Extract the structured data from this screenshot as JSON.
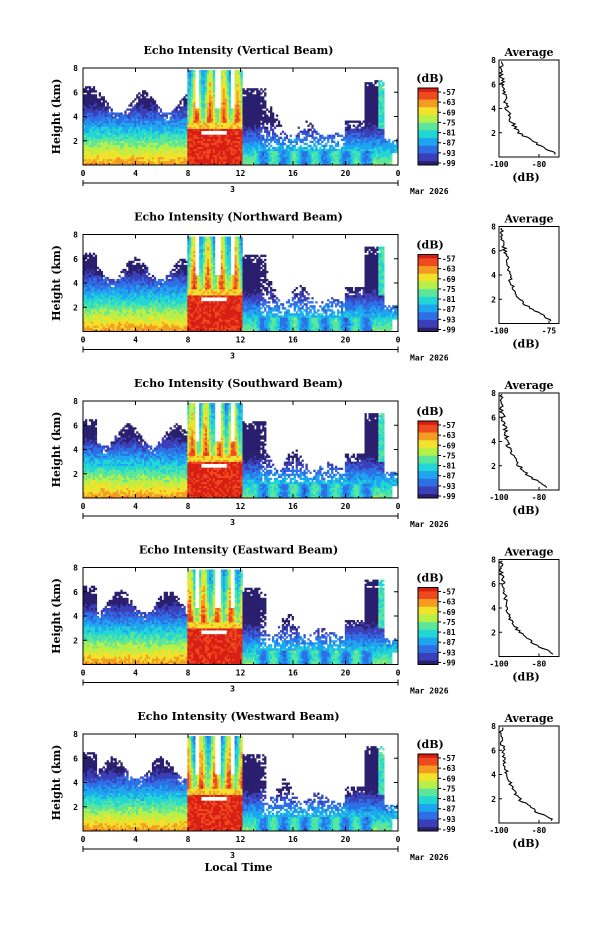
{
  "figure": {
    "xlabel": "Local Time",
    "date_label": "Mar 2026",
    "day_label": "3",
    "colorbar_unit": "(dB)",
    "colorbar_ticks": [
      "-57",
      "-63",
      "-69",
      "-75",
      "-81",
      "-87",
      "-93",
      "-99"
    ],
    "colormap": [
      "#2a1f6e",
      "#3b3fb8",
      "#2f6fe6",
      "#1ea5f0",
      "#22d6d6",
      "#5ce69c",
      "#b8f04a",
      "#f2e22c",
      "#f59b22",
      "#ee4a1e",
      "#d81e14"
    ]
  },
  "chart_data": [
    {
      "type": "heatmap",
      "title": "Echo Intensity (Vertical Beam)",
      "xlabel": "",
      "ylabel": "Height (km)",
      "xlim": [
        0,
        24
      ],
      "ylim": [
        0,
        8
      ],
      "xticks": [
        "0",
        "4",
        "8",
        "12",
        "16",
        "20",
        "0"
      ],
      "yticks": [
        "2",
        "4",
        "6",
        "8"
      ],
      "value_range_db": [
        -99,
        -57
      ],
      "profile": {
        "title": "Average",
        "xlabel": "(dB)",
        "xlim": [
          -100,
          -70
        ],
        "xticks": [
          "-100",
          "-80"
        ],
        "yticks": [
          "2",
          "4",
          "6",
          "8"
        ],
        "height_km": [
          0.3,
          1.0,
          2.0,
          3.0,
          4.0,
          5.0,
          6.0,
          7.0,
          7.8
        ],
        "db": [
          -72,
          -80,
          -90,
          -94,
          -96,
          -97,
          -98,
          -99,
          -99
        ]
      }
    },
    {
      "type": "heatmap",
      "title": "Echo Intensity (Northward Beam)",
      "xlabel": "",
      "ylabel": "Height (km)",
      "xlim": [
        0,
        24
      ],
      "ylim": [
        0,
        8
      ],
      "xticks": [
        "0",
        "4",
        "8",
        "12",
        "16",
        "20",
        "0"
      ],
      "yticks": [
        "2",
        "4",
        "6",
        "8"
      ],
      "value_range_db": [
        -99,
        -57
      ],
      "profile": {
        "title": "Average",
        "xlabel": "(dB)",
        "xlim": [
          -100,
          -70
        ],
        "xticks": [
          "-100",
          "-75"
        ],
        "yticks": [
          "2",
          "4",
          "6",
          "8"
        ],
        "height_km": [
          0.3,
          1.0,
          2.0,
          3.0,
          4.0,
          5.0,
          6.0,
          7.0,
          7.8
        ],
        "db": [
          -74,
          -82,
          -90,
          -93,
          -95,
          -96,
          -97,
          -98,
          -99
        ]
      }
    },
    {
      "type": "heatmap",
      "title": "Echo Intensity (Southward Beam)",
      "xlabel": "",
      "ylabel": "Height (km)",
      "xlim": [
        0,
        24
      ],
      "ylim": [
        0,
        8
      ],
      "xticks": [
        "0",
        "4",
        "8",
        "12",
        "16",
        "20",
        "0"
      ],
      "yticks": [
        "2",
        "4",
        "6",
        "8"
      ],
      "value_range_db": [
        -99,
        -57
      ],
      "profile": {
        "title": "Average",
        "xlabel": "(dB)",
        "xlim": [
          -100,
          -70
        ],
        "xticks": [
          "-100",
          "-80"
        ],
        "yticks": [
          "2",
          "4",
          "6",
          "8"
        ],
        "height_km": [
          0.3,
          1.0,
          2.0,
          3.0,
          4.0,
          5.0,
          6.0,
          7.0,
          7.8
        ],
        "db": [
          -76,
          -84,
          -90,
          -94,
          -96,
          -97,
          -98,
          -99,
          -99
        ]
      }
    },
    {
      "type": "heatmap",
      "title": "Echo Intensity (Eastward Beam)",
      "xlabel": "",
      "ylabel": "Height (km)",
      "xlim": [
        0,
        24
      ],
      "ylim": [
        0,
        8
      ],
      "xticks": [
        "0",
        "4",
        "8",
        "12",
        "16",
        "20",
        "0"
      ],
      "yticks": [
        "2",
        "4",
        "6",
        "8"
      ],
      "value_range_db": [
        -99,
        -57
      ],
      "profile": {
        "title": "Average",
        "xlabel": "(dB)",
        "xlim": [
          -100,
          -70
        ],
        "xticks": [
          "-100",
          "-80"
        ],
        "yticks": [
          "2",
          "4",
          "6",
          "8"
        ],
        "height_km": [
          0.3,
          1.0,
          2.0,
          3.0,
          4.0,
          5.0,
          6.0,
          7.0,
          7.8
        ],
        "db": [
          -73,
          -82,
          -90,
          -94,
          -96,
          -97,
          -98,
          -99,
          -99
        ]
      }
    },
    {
      "type": "heatmap",
      "title": "Echo Intensity (Westward Beam)",
      "xlabel": "Local Time",
      "ylabel": "Height (km)",
      "xlim": [
        0,
        24
      ],
      "ylim": [
        0,
        8
      ],
      "xticks": [
        "0",
        "4",
        "8",
        "12",
        "16",
        "20",
        "0"
      ],
      "yticks": [
        "2",
        "4",
        "6",
        "8"
      ],
      "value_range_db": [
        -99,
        -57
      ],
      "profile": {
        "title": "Average",
        "xlabel": "(dB)",
        "xlim": [
          -100,
          -70
        ],
        "xticks": [
          "-100",
          "-80"
        ],
        "yticks": [
          "2",
          "4",
          "6",
          "8"
        ],
        "height_km": [
          0.3,
          1.0,
          2.0,
          3.0,
          4.0,
          5.0,
          6.0,
          7.0,
          7.8
        ],
        "db": [
          -74,
          -82,
          -90,
          -94,
          -96,
          -97,
          -98,
          -99,
          -99
        ]
      }
    }
  ]
}
